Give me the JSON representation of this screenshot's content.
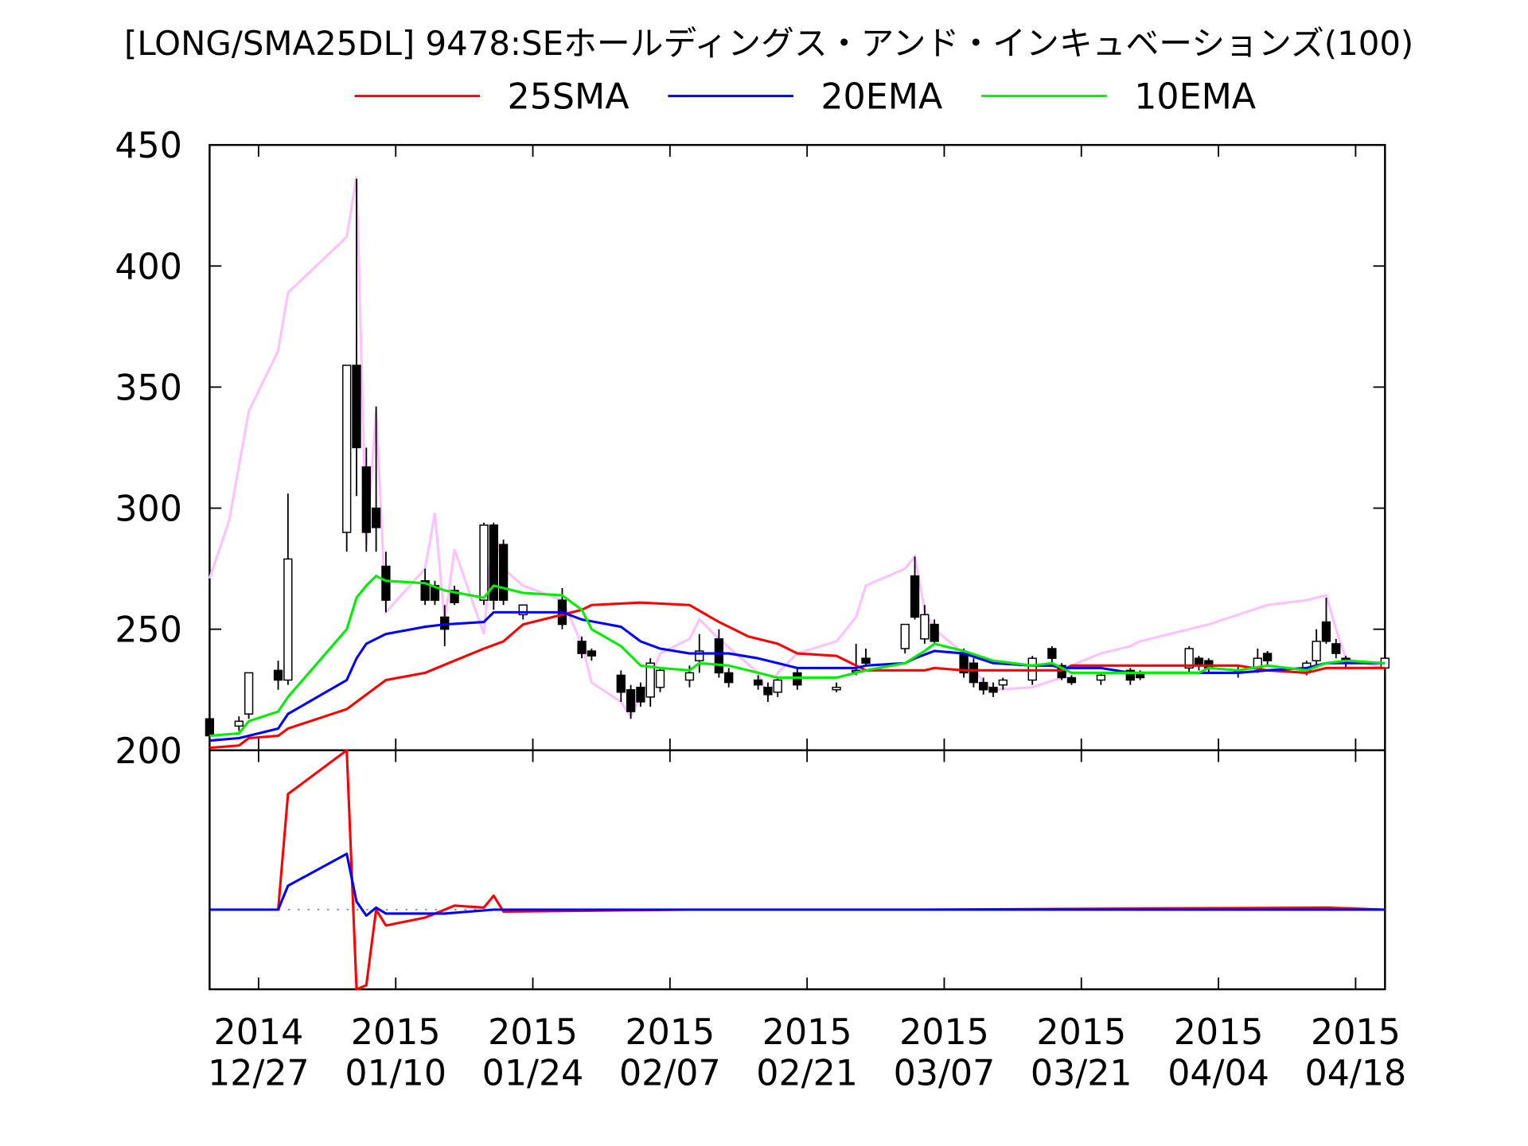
{
  "chart_data": [
    {
      "type": "candlestick",
      "title": "[LONG/SMA25DL] 9478:SEホールディングス・アンド・インキュベーションズ(100)",
      "xlim": [
        "2014-12-22",
        "2015-04-21"
      ],
      "ylim": [
        200,
        450
      ],
      "yticks": [
        200,
        250,
        300,
        350,
        400,
        450
      ],
      "up_color": "#ffffff",
      "down_color": "#000000",
      "x": [
        "2014-12-22",
        "2014-12-25",
        "2014-12-26",
        "2014-12-29",
        "2014-12-30",
        "2015-01-05",
        "2015-01-06",
        "2015-01-07",
        "2015-01-08",
        "2015-01-09",
        "2015-01-13",
        "2015-01-14",
        "2015-01-15",
        "2015-01-16",
        "2015-01-19",
        "2015-01-20",
        "2015-01-21",
        "2015-01-23",
        "2015-01-27",
        "2015-01-29",
        "2015-01-30",
        "2015-02-02",
        "2015-02-03",
        "2015-02-04",
        "2015-02-05",
        "2015-02-06",
        "2015-02-09",
        "2015-02-10",
        "2015-02-12",
        "2015-02-13",
        "2015-02-16",
        "2015-02-17",
        "2015-02-18",
        "2015-02-20",
        "2015-02-24",
        "2015-02-26",
        "2015-02-27",
        "2015-03-03",
        "2015-03-04",
        "2015-03-05",
        "2015-03-06",
        "2015-03-09",
        "2015-03-10",
        "2015-03-11",
        "2015-03-12",
        "2015-03-13",
        "2015-03-16",
        "2015-03-18",
        "2015-03-19",
        "2015-03-20",
        "2015-03-23",
        "2015-03-26",
        "2015-03-27",
        "2015-04-01",
        "2015-04-02",
        "2015-04-03",
        "2015-04-06",
        "2015-04-08",
        "2015-04-09",
        "2015-04-13",
        "2015-04-14",
        "2015-04-15",
        "2015-04-16",
        "2015-04-17",
        "2015-04-21"
      ],
      "open": [
        213,
        210,
        215,
        233,
        229,
        290,
        359,
        317,
        300,
        276,
        270,
        268,
        255,
        266,
        262,
        293,
        285,
        256,
        262,
        245,
        241,
        231,
        225,
        226,
        222,
        226,
        229,
        237,
        246,
        232,
        229,
        226,
        224,
        232,
        225,
        233,
        238,
        242,
        272,
        246,
        252,
        240,
        236,
        228,
        226,
        227,
        229,
        242,
        235,
        230,
        229,
        233,
        232,
        234,
        238,
        237,
        233,
        234,
        240,
        233,
        237,
        253,
        244,
        238,
        234
      ],
      "high": [
        214,
        214,
        232,
        237,
        306,
        359,
        436,
        325,
        342,
        282,
        275,
        270,
        260,
        268,
        294,
        294,
        287,
        260,
        267,
        247,
        242,
        233,
        227,
        228,
        238,
        234,
        235,
        248,
        250,
        234,
        231,
        228,
        230,
        234,
        228,
        244,
        242,
        252,
        280,
        260,
        254,
        242,
        238,
        230,
        228,
        230,
        239,
        243,
        236,
        231,
        232,
        234,
        233,
        243,
        239,
        238,
        235,
        242,
        241,
        237,
        250,
        263,
        246,
        239,
        239
      ],
      "low": [
        206,
        208,
        213,
        225,
        227,
        282,
        305,
        282,
        282,
        257,
        260,
        260,
        243,
        260,
        260,
        258,
        260,
        254,
        250,
        238,
        237,
        220,
        213,
        218,
        218,
        224,
        226,
        232,
        230,
        226,
        225,
        220,
        222,
        225,
        224,
        231,
        235,
        240,
        254,
        244,
        244,
        230,
        226,
        223,
        222,
        225,
        227,
        236,
        229,
        227,
        227,
        227,
        229,
        232,
        233,
        232,
        230,
        232,
        235,
        231,
        235,
        244,
        238,
        234,
        232
      ],
      "close": [
        206,
        212,
        232,
        229,
        279,
        359,
        325,
        290,
        292,
        262,
        262,
        262,
        250,
        261,
        293,
        262,
        262,
        260,
        252,
        240,
        239,
        224,
        216,
        220,
        236,
        233,
        232,
        241,
        232,
        228,
        227,
        223,
        229,
        227,
        226,
        233,
        236,
        252,
        255,
        256,
        245,
        232,
        228,
        225,
        224,
        229,
        238,
        238,
        230,
        228,
        231,
        229,
        230,
        242,
        235,
        234,
        232,
        238,
        237,
        236,
        245,
        245,
        240,
        236,
        238
      ],
      "series": [
        {
          "name": "25SMA",
          "color": "#ff0000",
          "x": [
            "2014-12-22",
            "2014-12-25",
            "2014-12-26",
            "2014-12-29",
            "2014-12-30",
            "2015-01-05",
            "2015-01-07",
            "2015-01-09",
            "2015-01-13",
            "2015-01-16",
            "2015-01-19",
            "2015-01-21",
            "2015-01-23",
            "2015-01-27",
            "2015-01-29",
            "2015-01-30",
            "2015-02-04",
            "2015-02-09",
            "2015-02-12",
            "2015-02-15",
            "2015-02-18",
            "2015-02-20",
            "2015-02-24",
            "2015-02-26",
            "2015-02-27",
            "2015-03-05",
            "2015-03-06",
            "2015-03-09",
            "2015-03-19",
            "2015-03-20",
            "2015-04-06",
            "2015-04-09",
            "2015-04-13",
            "2015-04-15",
            "2015-04-21"
          ],
          "values": [
            201,
            202,
            205,
            206,
            209,
            217,
            223,
            229,
            232,
            237,
            242,
            245,
            252,
            256,
            258,
            260,
            261,
            260,
            253,
            247,
            244,
            240,
            239,
            235,
            233,
            233,
            234,
            233,
            233,
            235,
            235,
            233,
            232,
            234,
            234
          ]
        },
        {
          "name": "20EMA",
          "color": "#0000ff",
          "x": [
            "2014-12-22",
            "2014-12-25",
            "2014-12-26",
            "2014-12-29",
            "2014-12-30",
            "2015-01-05",
            "2015-01-06",
            "2015-01-07",
            "2015-01-09",
            "2015-01-13",
            "2015-01-15",
            "2015-01-19",
            "2015-01-20",
            "2015-01-27",
            "2015-01-29",
            "2015-02-02",
            "2015-02-04",
            "2015-02-06",
            "2015-02-09",
            "2015-02-13",
            "2015-02-16",
            "2015-02-18",
            "2015-02-20",
            "2015-02-26",
            "2015-02-27",
            "2015-03-03",
            "2015-03-04",
            "2015-03-06",
            "2015-03-09",
            "2015-03-12",
            "2015-03-16",
            "2015-03-18",
            "2015-03-19",
            "2015-03-23",
            "2015-03-26",
            "2015-04-06",
            "2015-04-09",
            "2015-04-13",
            "2015-04-15",
            "2015-04-21"
          ],
          "values": [
            204,
            205,
            206,
            209,
            215,
            229,
            238,
            244,
            248,
            251,
            252,
            253,
            257,
            257,
            254,
            251,
            245,
            242,
            240,
            240,
            238,
            236,
            234,
            234,
            235,
            236,
            238,
            241,
            240,
            236,
            235,
            235,
            234,
            234,
            232,
            232,
            233,
            234,
            236,
            236
          ]
        },
        {
          "name": "10EMA",
          "color": "#00ee00",
          "x": [
            "2014-12-22",
            "2014-12-25",
            "2014-12-26",
            "2014-12-29",
            "2014-12-30",
            "2015-01-05",
            "2015-01-06",
            "2015-01-07",
            "2015-01-08",
            "2015-01-09",
            "2015-01-13",
            "2015-01-15",
            "2015-01-19",
            "2015-01-20",
            "2015-01-23",
            "2015-01-27",
            "2015-01-29",
            "2015-01-30",
            "2015-02-02",
            "2015-02-04",
            "2015-02-06",
            "2015-02-09",
            "2015-02-10",
            "2015-02-13",
            "2015-02-16",
            "2015-02-18",
            "2015-02-24",
            "2015-02-27",
            "2015-03-03",
            "2015-03-05",
            "2015-03-06",
            "2015-03-09",
            "2015-03-12",
            "2015-03-16",
            "2015-03-18",
            "2015-03-20",
            "2015-04-02",
            "2015-04-03",
            "2015-04-06",
            "2015-04-09",
            "2015-04-13",
            "2015-04-15",
            "2015-04-17",
            "2015-04-21"
          ],
          "values": [
            206,
            207,
            212,
            216,
            222,
            250,
            263,
            268,
            272,
            270,
            269,
            266,
            263,
            268,
            265,
            264,
            258,
            250,
            243,
            235,
            234,
            233,
            236,
            235,
            232,
            230,
            230,
            233,
            236,
            241,
            244,
            241,
            237,
            235,
            236,
            232,
            232,
            234,
            233,
            235,
            233,
            236,
            237,
            236
          ]
        },
        {
          "color": "#ffc0ff",
          "x": [
            "2014-12-22",
            "2014-12-24",
            "2014-12-26",
            "2014-12-29",
            "2014-12-30",
            "2015-01-05",
            "2015-01-06",
            "2015-01-07",
            "2015-01-08",
            "2015-01-09",
            "2015-01-13",
            "2015-01-14",
            "2015-01-15",
            "2015-01-16",
            "2015-01-19",
            "2015-01-20",
            "2015-01-21",
            "2015-01-23",
            "2015-01-27",
            "2015-01-29",
            "2015-01-30",
            "2015-02-02",
            "2015-02-03",
            "2015-02-05",
            "2015-02-06",
            "2015-02-09",
            "2015-02-10",
            "2015-02-12",
            "2015-02-16",
            "2015-02-17",
            "2015-02-18",
            "2015-02-20",
            "2015-02-24",
            "2015-02-26",
            "2015-02-27",
            "2015-03-03",
            "2015-03-04",
            "2015-03-05",
            "2015-03-06",
            "2015-03-09",
            "2015-03-11",
            "2015-03-12",
            "2015-03-16",
            "2015-03-19",
            "2015-03-20",
            "2015-03-23",
            "2015-03-26",
            "2015-03-27",
            "2015-04-01",
            "2015-04-03",
            "2015-04-06",
            "2015-04-09",
            "2015-04-13",
            "2015-04-15",
            "2015-04-16",
            "2015-04-17",
            "2015-04-21"
          ],
          "values": [
            271,
            295,
            340,
            365,
            389,
            412,
            437,
            285,
            340,
            257,
            275,
            298,
            253,
            283,
            248,
            293,
            275,
            268,
            262,
            244,
            228,
            220,
            214,
            230,
            240,
            246,
            254,
            246,
            232,
            222,
            232,
            240,
            245,
            255,
            268,
            275,
            280,
            258,
            250,
            240,
            228,
            225,
            226,
            230,
            235,
            240,
            243,
            245,
            250,
            252,
            256,
            260,
            262,
            264,
            250,
            238,
            234
          ]
        }
      ]
    },
    {
      "type": "line",
      "xlim": [
        "2014-12-22",
        "2015-04-21"
      ],
      "ylim": [
        -40,
        80
      ],
      "xticks": [
        {
          "value": "2014-12-27",
          "label": "2014\n12/27"
        },
        {
          "value": "2015-01-10",
          "label": "2015\n01/10"
        },
        {
          "value": "2015-01-24",
          "label": "2015\n01/24"
        },
        {
          "value": "2015-02-07",
          "label": "2015\n02/07"
        },
        {
          "value": "2015-02-21",
          "label": "2015\n02/21"
        },
        {
          "value": "2015-03-07",
          "label": "2015\n03/07"
        },
        {
          "value": "2015-03-21",
          "label": "2015\n03/21"
        },
        {
          "value": "2015-04-04",
          "label": "2015\n04/04"
        },
        {
          "value": "2015-04-18",
          "label": "2015\n04/18"
        }
      ],
      "series": [
        {
          "color": "#ff0000",
          "x": [
            "2014-12-22",
            "2014-12-26",
            "2014-12-29",
            "2014-12-30",
            "2015-01-05",
            "2015-01-06",
            "2015-01-07",
            "2015-01-08",
            "2015-01-09",
            "2015-01-13",
            "2015-01-15",
            "2015-01-16",
            "2015-01-19",
            "2015-01-20",
            "2015-01-21",
            "2015-02-09",
            "2015-03-04",
            "2015-04-15",
            "2015-04-21"
          ],
          "values": [
            0,
            0,
            0,
            58,
            80,
            -40,
            -38,
            0,
            -8,
            -4,
            0,
            2,
            1,
            7,
            -1,
            0,
            0,
            1,
            0
          ]
        },
        {
          "color": "#0000ff",
          "x": [
            "2014-12-22",
            "2014-12-26",
            "2014-12-29",
            "2014-12-30",
            "2015-01-05",
            "2015-01-06",
            "2015-01-07",
            "2015-01-08",
            "2015-01-09",
            "2015-01-15",
            "2015-01-20",
            "2015-01-21",
            "2015-02-09",
            "2015-04-21"
          ],
          "values": [
            0,
            0,
            0,
            12,
            28,
            4,
            -3,
            1,
            -2,
            -2,
            0,
            0,
            0,
            0
          ]
        }
      ]
    }
  ]
}
